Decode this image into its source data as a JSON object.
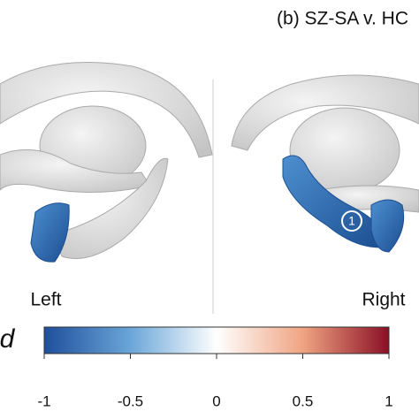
{
  "title": "(b) SZ-SA v. HC",
  "panels": [
    {
      "label": "Left"
    },
    {
      "label": "Right",
      "annotation": "1"
    }
  ],
  "colorbar": {
    "label": "d",
    "lim": [
      -1,
      1
    ],
    "ticks": [
      -1,
      -0.5,
      0,
      0.5,
      1
    ]
  }
}
